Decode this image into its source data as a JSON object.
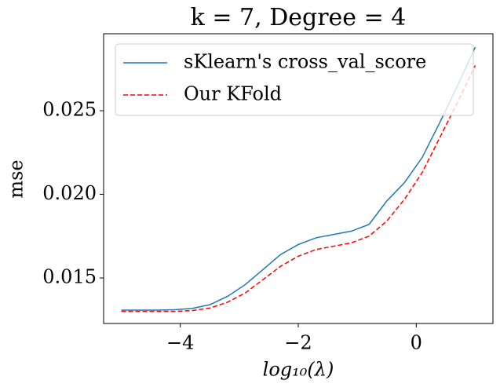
{
  "chart_data": {
    "type": "line",
    "title": "k = 7, Degree = 4",
    "x_label": "log₁₀(λ)",
    "y_label": "mse",
    "x": [
      -5,
      -4.7,
      -4.4,
      -4.1,
      -3.8,
      -3.5,
      -3.2,
      -2.9,
      -2.6,
      -2.3,
      -2.0,
      -1.7,
      -1.4,
      -1.1,
      -0.8,
      -0.5,
      -0.2,
      0.1,
      0.4,
      0.7,
      1.0
    ],
    "series": [
      {
        "name": "sKlearn's cross_val_score",
        "color": "#1f77b4",
        "dash": false,
        "values": [
          0.01308,
          0.01308,
          0.01308,
          0.0131,
          0.01318,
          0.0134,
          0.0139,
          0.0146,
          0.0155,
          0.0164,
          0.017,
          0.0174,
          0.0176,
          0.0178,
          0.0182,
          0.0196,
          0.0207,
          0.0222,
          0.0243,
          0.0265,
          0.0288
        ]
      },
      {
        "name": "Our KFold",
        "color": "#ff0000",
        "dash": true,
        "values": [
          0.013,
          0.013,
          0.013,
          0.013,
          0.01305,
          0.0132,
          0.01355,
          0.0141,
          0.0149,
          0.0157,
          0.0163,
          0.0167,
          0.0169,
          0.0171,
          0.0175,
          0.0184,
          0.0197,
          0.0213,
          0.0234,
          0.0255,
          0.0277
        ]
      }
    ],
    "xlim": [
      -5.3,
      1.3
    ],
    "ylim": [
      0.01228,
      0.0296
    ],
    "xticks": [
      {
        "value": -4,
        "label": "−4"
      },
      {
        "value": -2,
        "label": "−2"
      },
      0
    ],
    "yticks": [
      {
        "value": 0.015,
        "label": "0.015"
      },
      {
        "value": 0.02,
        "label": "0.020"
      },
      {
        "value": 0.025,
        "label": "0.025"
      }
    ],
    "legend": "upper right",
    "grid": false
  }
}
